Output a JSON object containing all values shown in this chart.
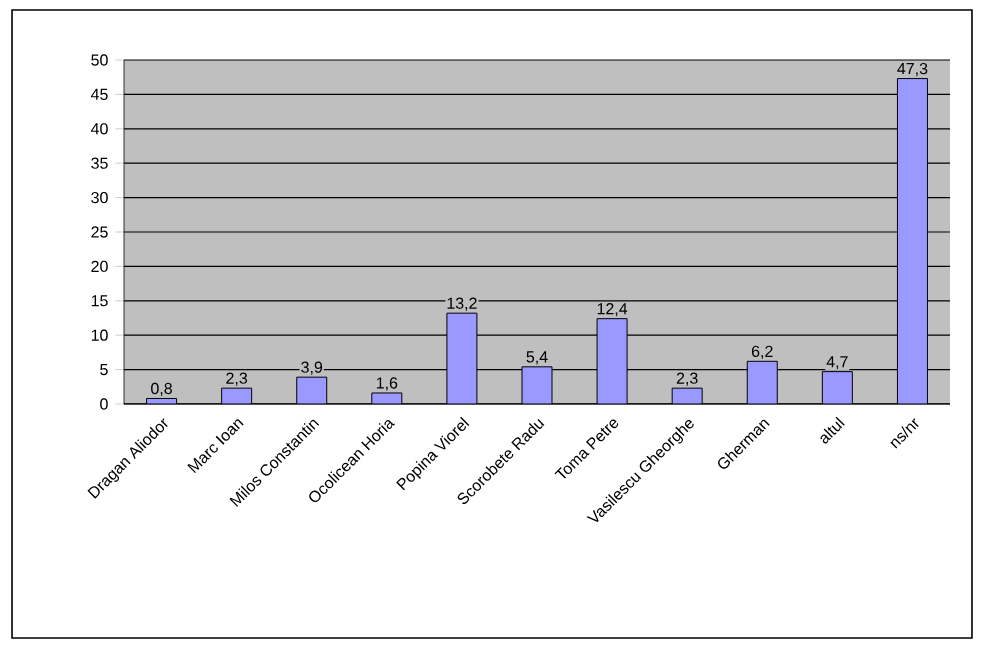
{
  "chart_data": {
    "type": "bar",
    "categories": [
      "Dragan Aliodor",
      "Marc Ioan",
      "Milos Constantin",
      "Ocolicean Horia",
      "Popina Viorel",
      "Scorobete Radu",
      "Toma Petre",
      "Vasilescu Gheorghe",
      "Gherman",
      "altul",
      "ns/nr"
    ],
    "values": [
      0.8,
      2.3,
      3.9,
      1.6,
      13.2,
      5.4,
      12.4,
      2.3,
      6.2,
      4.7,
      47.3
    ],
    "value_labels": [
      "0,8",
      "2,3",
      "3,9",
      "1,6",
      "13,2",
      "5,4",
      "12,4",
      "2,3",
      "6,2",
      "4,7",
      "47,3"
    ],
    "color": "#9999ff",
    "ylim": [
      0,
      50
    ],
    "yticks": [
      0,
      5,
      10,
      15,
      20,
      25,
      30,
      35,
      40,
      45,
      50
    ],
    "grid": "y"
  }
}
